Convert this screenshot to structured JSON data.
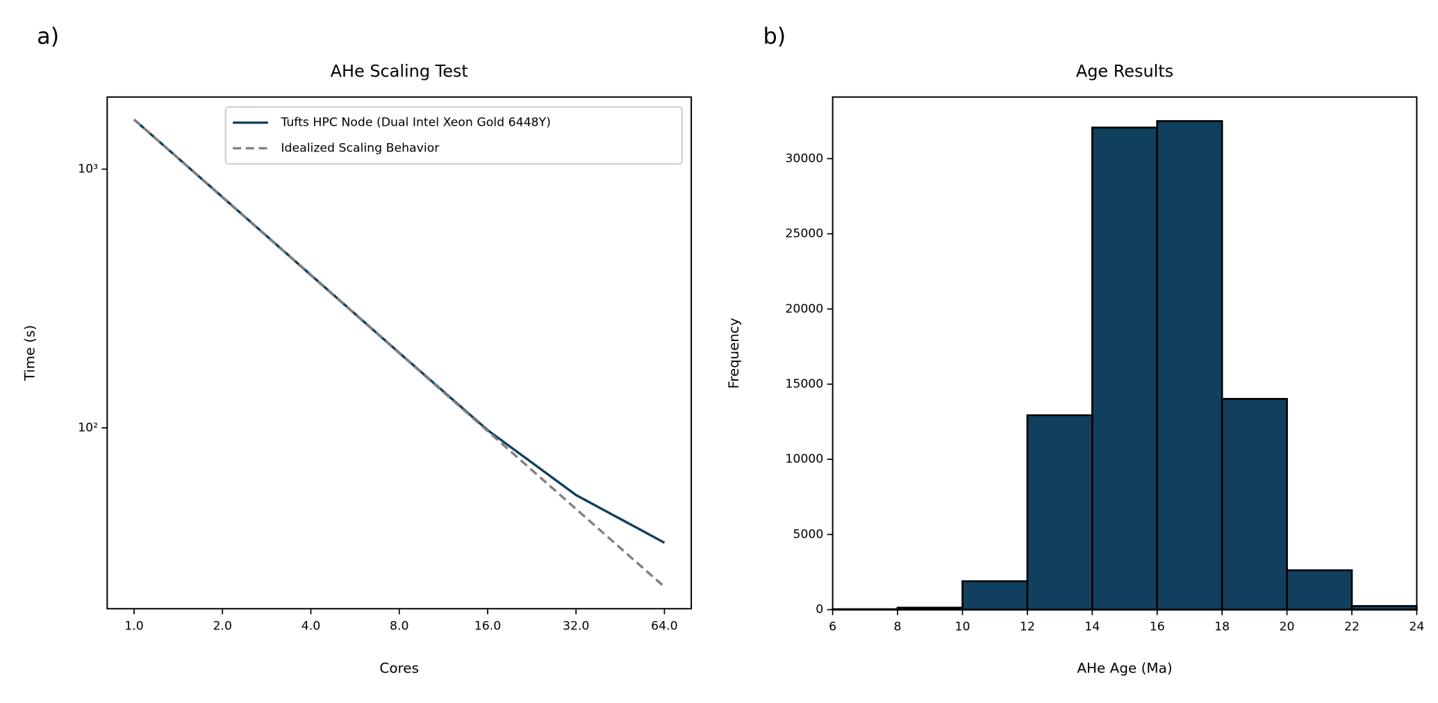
{
  "chart_data": [
    {
      "type": "line",
      "label": "a)",
      "title": "AHe Scaling Test",
      "xlabel": "Cores",
      "ylabel": "Time (s)",
      "xscale": "log",
      "yscale": "log",
      "x": [
        1,
        2,
        4,
        8,
        16,
        32,
        64
      ],
      "series": [
        {
          "name": "Tufts HPC Node (Dual Intel Xeon Gold 6448Y)",
          "color": "#11405e",
          "linestyle": "solid",
          "values": [
            1555,
            780,
            390,
            195,
            98,
            55,
            36
          ]
        },
        {
          "name": "Idealized Scaling Behavior",
          "color": "#808080",
          "linestyle": "dashed",
          "values": [
            1555,
            777.5,
            388.75,
            194.4,
            97.2,
            48.6,
            24.3
          ]
        }
      ],
      "xlim": [
        0.81,
        79
      ],
      "ylim": [
        20,
        1900
      ],
      "xticks": [
        {
          "value": 1,
          "label": "1.0"
        },
        {
          "value": 2,
          "label": "2.0"
        },
        {
          "value": 4,
          "label": "4.0"
        },
        {
          "value": 8,
          "label": "8.0"
        },
        {
          "value": 16,
          "label": "16.0"
        },
        {
          "value": 32,
          "label": "32.0"
        },
        {
          "value": 64,
          "label": "64.0"
        }
      ],
      "yticks": [
        {
          "value": 100,
          "label": "10²"
        },
        {
          "value": 1000,
          "label": "10³"
        }
      ],
      "legend": "upper right"
    },
    {
      "type": "histogram",
      "label": "b)",
      "title": "Age Results",
      "xlabel": "AHe Age (Ma)",
      "ylabel": "Frequency",
      "bins": [
        6,
        8,
        10,
        12,
        14,
        16,
        18,
        20,
        22,
        24
      ],
      "values": [
        30,
        130,
        1890,
        12930,
        32070,
        32500,
        14020,
        2620,
        240
      ],
      "color": "#11405e",
      "edgecolor": "#000000",
      "xlim": [
        6,
        24
      ],
      "ylim": [
        0,
        34100
      ],
      "xticks": [
        6,
        8,
        10,
        12,
        14,
        16,
        18,
        20,
        22,
        24
      ],
      "yticks": [
        0,
        5000,
        10000,
        15000,
        20000,
        25000,
        30000
      ]
    }
  ]
}
